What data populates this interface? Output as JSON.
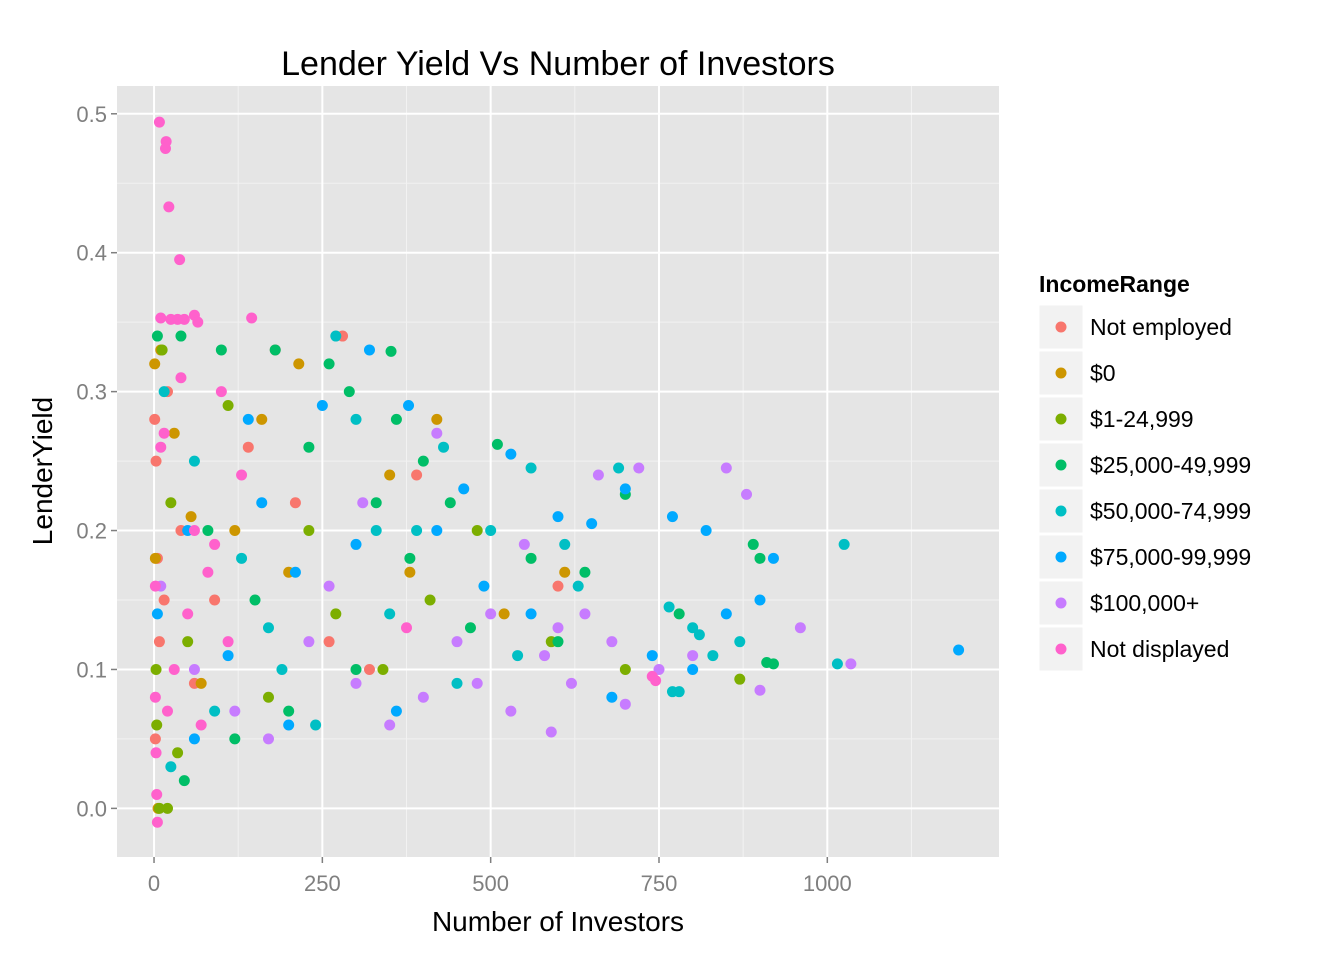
{
  "chart_data": {
    "type": "scatter",
    "title": "Lender Yield Vs Number of Investors",
    "xlabel": "Number of Investors",
    "ylabel": "LenderYield",
    "xlim": [
      -55,
      1255
    ],
    "ylim": [
      -0.035,
      0.52
    ],
    "x_ticks": [
      0,
      250,
      500,
      750,
      1000
    ],
    "x_tick_labels": [
      "0",
      "250",
      "500",
      "750",
      "1000"
    ],
    "y_ticks": [
      0.0,
      0.1,
      0.2,
      0.3,
      0.4,
      0.5
    ],
    "y_tick_labels": [
      "0.0",
      "0.1",
      "0.2",
      "0.3",
      "0.4",
      "0.5"
    ],
    "grid": true,
    "legend": {
      "title": "IncomeRange",
      "position": "right",
      "entries": [
        "Not employed",
        "$0",
        "$1-24,999",
        "$25,000-49,999",
        "$50,000-74,999",
        "$75,000-99,999",
        "$100,000+",
        "Not displayed"
      ]
    },
    "colors": [
      "#F8766D",
      "#CD9600",
      "#7CAE00",
      "#00BE67",
      "#00BFC4",
      "#00A9FF",
      "#C77CFF",
      "#FF61CC"
    ],
    "series": [
      {
        "name": "Not employed",
        "points": [
          [
            1,
            0.28
          ],
          [
            3,
            0.25
          ],
          [
            5,
            0.18
          ],
          [
            8,
            0.12
          ],
          [
            20,
            0.3
          ],
          [
            40,
            0.2
          ],
          [
            60,
            0.09
          ],
          [
            90,
            0.15
          ],
          [
            140,
            0.26
          ],
          [
            180,
            0.33
          ],
          [
            210,
            0.22
          ],
          [
            260,
            0.12
          ],
          [
            280,
            0.34
          ],
          [
            320,
            0.1
          ],
          [
            390,
            0.24
          ],
          [
            600,
            0.16
          ],
          [
            2,
            0.05
          ],
          [
            15,
            0.15
          ]
        ]
      },
      {
        "name": "$0",
        "points": [
          [
            1,
            0.32
          ],
          [
            2,
            0.18
          ],
          [
            6,
            0.0
          ],
          [
            10,
            0.33
          ],
          [
            30,
            0.27
          ],
          [
            70,
            0.09
          ],
          [
            120,
            0.2
          ],
          [
            160,
            0.28
          ],
          [
            200,
            0.17
          ],
          [
            215,
            0.32
          ],
          [
            350,
            0.24
          ],
          [
            380,
            0.17
          ],
          [
            420,
            0.28
          ],
          [
            520,
            0.14
          ],
          [
            610,
            0.17
          ],
          [
            55,
            0.21
          ]
        ]
      },
      {
        "name": "$1-24,999",
        "points": [
          [
            4,
            0.06
          ],
          [
            8,
            0.0
          ],
          [
            20,
            0.0
          ],
          [
            12,
            0.33
          ],
          [
            25,
            0.22
          ],
          [
            50,
            0.12
          ],
          [
            110,
            0.29
          ],
          [
            170,
            0.08
          ],
          [
            230,
            0.2
          ],
          [
            270,
            0.14
          ],
          [
            340,
            0.1
          ],
          [
            410,
            0.15
          ],
          [
            480,
            0.2
          ],
          [
            590,
            0.12
          ],
          [
            700,
            0.1
          ],
          [
            870,
            0.093
          ],
          [
            3,
            0.1
          ],
          [
            35,
            0.04
          ]
        ]
      },
      {
        "name": "$25,000-49,999",
        "points": [
          [
            5,
            0.34
          ],
          [
            40,
            0.34
          ],
          [
            100,
            0.33
          ],
          [
            180,
            0.33
          ],
          [
            260,
            0.32
          ],
          [
            290,
            0.3
          ],
          [
            352,
            0.329
          ],
          [
            360,
            0.28
          ],
          [
            400,
            0.25
          ],
          [
            440,
            0.22
          ],
          [
            510,
            0.262
          ],
          [
            560,
            0.18
          ],
          [
            640,
            0.17
          ],
          [
            700,
            0.226
          ],
          [
            780,
            0.14
          ],
          [
            890,
            0.19
          ],
          [
            900,
            0.18
          ],
          [
            910,
            0.105
          ],
          [
            920,
            0.104
          ],
          [
            45,
            0.02
          ],
          [
            120,
            0.05
          ],
          [
            200,
            0.07
          ],
          [
            300,
            0.1
          ],
          [
            380,
            0.18
          ],
          [
            470,
            0.13
          ],
          [
            600,
            0.12
          ],
          [
            80,
            0.2
          ],
          [
            150,
            0.15
          ],
          [
            230,
            0.26
          ],
          [
            330,
            0.22
          ]
        ]
      },
      {
        "name": "$50,000-74,999",
        "points": [
          [
            15,
            0.3
          ],
          [
            60,
            0.25
          ],
          [
            130,
            0.18
          ],
          [
            190,
            0.1
          ],
          [
            240,
            0.06
          ],
          [
            300,
            0.28
          ],
          [
            330,
            0.2
          ],
          [
            390,
            0.2
          ],
          [
            430,
            0.26
          ],
          [
            500,
            0.2
          ],
          [
            560,
            0.245
          ],
          [
            630,
            0.16
          ],
          [
            690,
            0.245
          ],
          [
            765,
            0.145
          ],
          [
            800,
            0.13
          ],
          [
            810,
            0.125
          ],
          [
            830,
            0.11
          ],
          [
            870,
            0.12
          ],
          [
            1015,
            0.104
          ],
          [
            1025,
            0.19
          ],
          [
            770,
            0.084
          ],
          [
            780,
            0.084
          ],
          [
            25,
            0.03
          ],
          [
            90,
            0.07
          ],
          [
            170,
            0.13
          ],
          [
            270,
            0.34
          ],
          [
            350,
            0.14
          ],
          [
            450,
            0.09
          ],
          [
            540,
            0.11
          ],
          [
            610,
            0.19
          ]
        ]
      },
      {
        "name": "$75,000-99,999",
        "points": [
          [
            5,
            0.14
          ],
          [
            50,
            0.2
          ],
          [
            110,
            0.11
          ],
          [
            160,
            0.22
          ],
          [
            210,
            0.17
          ],
          [
            250,
            0.29
          ],
          [
            320,
            0.33
          ],
          [
            378,
            0.29
          ],
          [
            420,
            0.2
          ],
          [
            490,
            0.16
          ],
          [
            530,
            0.255
          ],
          [
            600,
            0.21
          ],
          [
            650,
            0.205
          ],
          [
            700,
            0.23
          ],
          [
            770,
            0.21
          ],
          [
            820,
            0.2
          ],
          [
            850,
            0.14
          ],
          [
            900,
            0.15
          ],
          [
            920,
            0.18
          ],
          [
            1195,
            0.114
          ],
          [
            740,
            0.11
          ],
          [
            800,
            0.1
          ],
          [
            60,
            0.05
          ],
          [
            200,
            0.06
          ],
          [
            360,
            0.07
          ],
          [
            460,
            0.23
          ],
          [
            560,
            0.14
          ],
          [
            680,
            0.08
          ],
          [
            140,
            0.28
          ],
          [
            300,
            0.19
          ]
        ]
      },
      {
        "name": "$100,000+",
        "points": [
          [
            10,
            0.16
          ],
          [
            60,
            0.1
          ],
          [
            120,
            0.07
          ],
          [
            170,
            0.05
          ],
          [
            230,
            0.12
          ],
          [
            300,
            0.09
          ],
          [
            350,
            0.06
          ],
          [
            400,
            0.08
          ],
          [
            450,
            0.12
          ],
          [
            500,
            0.14
          ],
          [
            550,
            0.19
          ],
          [
            600,
            0.13
          ],
          [
            640,
            0.14
          ],
          [
            660,
            0.24
          ],
          [
            720,
            0.245
          ],
          [
            750,
            0.1
          ],
          [
            800,
            0.11
          ],
          [
            850,
            0.245
          ],
          [
            880,
            0.226
          ],
          [
            900,
            0.085
          ],
          [
            960,
            0.13
          ],
          [
            1035,
            0.104
          ],
          [
            700,
            0.075
          ],
          [
            590,
            0.055
          ],
          [
            420,
            0.27
          ],
          [
            310,
            0.22
          ],
          [
            260,
            0.16
          ],
          [
            480,
            0.09
          ],
          [
            530,
            0.07
          ],
          [
            580,
            0.11
          ],
          [
            620,
            0.09
          ],
          [
            680,
            0.12
          ]
        ]
      },
      {
        "name": "Not displayed",
        "points": [
          [
            8,
            0.494
          ],
          [
            18,
            0.48
          ],
          [
            17,
            0.475
          ],
          [
            22,
            0.433
          ],
          [
            38,
            0.395
          ],
          [
            10,
            0.353
          ],
          [
            25,
            0.352
          ],
          [
            35,
            0.352
          ],
          [
            45,
            0.352
          ],
          [
            60,
            0.355
          ],
          [
            65,
            0.35
          ],
          [
            145,
            0.353
          ],
          [
            2,
            0.08
          ],
          [
            3,
            0.04
          ],
          [
            4,
            0.01
          ],
          [
            5,
            -0.01
          ],
          [
            2,
            0.16
          ],
          [
            10,
            0.26
          ],
          [
            30,
            0.1
          ],
          [
            60,
            0.2
          ],
          [
            80,
            0.17
          ],
          [
            100,
            0.3
          ],
          [
            20,
            0.07
          ],
          [
            15,
            0.27
          ],
          [
            40,
            0.31
          ],
          [
            50,
            0.14
          ],
          [
            70,
            0.06
          ],
          [
            90,
            0.19
          ],
          [
            110,
            0.12
          ],
          [
            130,
            0.24
          ],
          [
            375,
            0.13
          ],
          [
            740,
            0.095
          ],
          [
            745,
            0.092
          ]
        ]
      }
    ]
  }
}
